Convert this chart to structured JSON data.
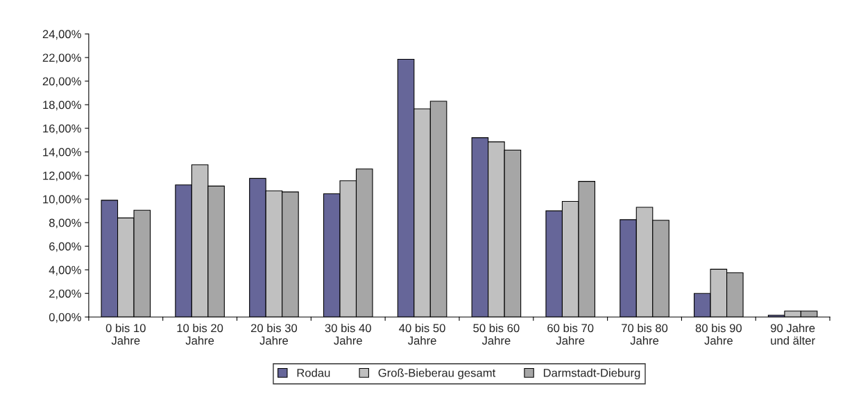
{
  "chart_data": {
    "type": "bar",
    "categories": [
      "0 bis 10\nJahre",
      "10 bis 20\nJahre",
      "20 bis 30\nJahre",
      "30 bis 40\nJahre",
      "40 bis 50\nJahre",
      "50 bis 60\nJahre",
      "60 bis 70\nJahre",
      "70 bis 80\nJahre",
      "80 bis 90\nJahre",
      "90 Jahre\nund älter"
    ],
    "series": [
      {
        "name": "Rodau",
        "color": "#666699",
        "values": [
          9.9,
          11.2,
          11.75,
          10.45,
          21.85,
          15.2,
          9.0,
          8.25,
          2.0,
          0.15
        ]
      },
      {
        "name": "Groß-Bieberau gesamt",
        "color": "#c0c0c0",
        "values": [
          8.4,
          12.9,
          10.7,
          11.55,
          17.65,
          14.85,
          9.8,
          9.3,
          4.05,
          0.5
        ]
      },
      {
        "name": "Darmstadt-Dieburg",
        "color": "#a6a6a6",
        "values": [
          9.05,
          11.1,
          10.6,
          12.55,
          18.3,
          14.15,
          11.5,
          8.2,
          3.75,
          0.5
        ]
      }
    ],
    "ylim": [
      0,
      24
    ],
    "yticks": [
      {
        "value": 0,
        "label": "0,00%"
      },
      {
        "value": 2,
        "label": "2,00%"
      },
      {
        "value": 4,
        "label": "4,00%"
      },
      {
        "value": 6,
        "label": "6,00%"
      },
      {
        "value": 8,
        "label": "8,00%"
      },
      {
        "value": 10,
        "label": "10,00%"
      },
      {
        "value": 12,
        "label": "12,00%"
      },
      {
        "value": 14,
        "label": "14,00%"
      },
      {
        "value": 16,
        "label": "16,00%"
      },
      {
        "value": 18,
        "label": "18,00%"
      },
      {
        "value": 20,
        "label": "20,00%"
      },
      {
        "value": 22,
        "label": "22,00%"
      },
      {
        "value": 24,
        "label": "24,00%"
      }
    ],
    "grid": false,
    "legend": "bottom"
  }
}
